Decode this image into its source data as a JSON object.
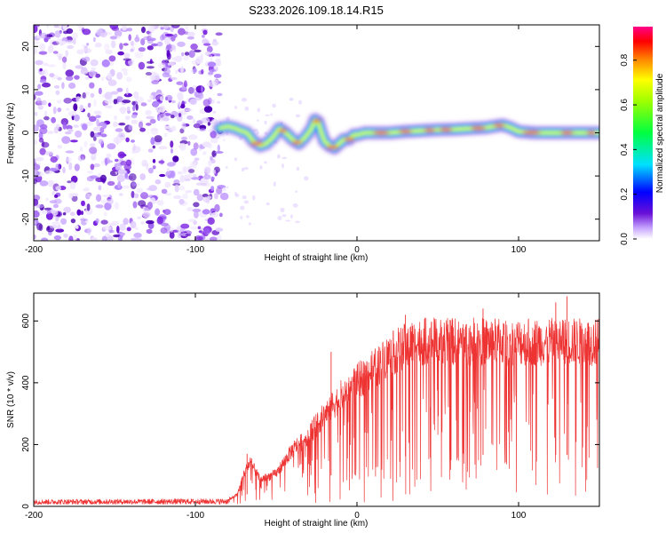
{
  "title": "S233.2026.109.18.14.R15",
  "chart_data": [
    {
      "type": "heatmap",
      "name": "spectrogram",
      "title": "S233.2026.109.18.14.R15",
      "xlabel": "Height of straight line (km)",
      "ylabel": "Frequency (Hz)",
      "xlim": [
        -200,
        150
      ],
      "ylim": [
        -25,
        25
      ],
      "xticks": [
        -200,
        -100,
        0,
        100
      ],
      "yticks": [
        -20,
        -10,
        0,
        10,
        20
      ],
      "noise_region_x": [
        -200,
        -85
      ],
      "ridge": {
        "x": [
          -85,
          -80,
          -75,
          -72,
          -68,
          -64,
          -60,
          -56,
          -52,
          -48,
          -44,
          -40,
          -36,
          -32,
          -28,
          -26,
          -24,
          -22,
          -20,
          -17,
          -14,
          -11,
          -8,
          -5,
          -2,
          0,
          5,
          10,
          20,
          30,
          40,
          50,
          60,
          70,
          80,
          85,
          90,
          95,
          100,
          110,
          120,
          130,
          140,
          150
        ],
        "y": [
          1,
          1.5,
          1,
          0.5,
          0,
          -2,
          -3,
          -2.5,
          -1,
          1,
          0,
          -1.5,
          -2.5,
          -1,
          1,
          3,
          2.5,
          0,
          -2,
          -3,
          -3.5,
          -2.5,
          -1.5,
          -1.5,
          -0.5,
          -0.5,
          0,
          0,
          0,
          0.3,
          0.5,
          0.7,
          0.8,
          1,
          1.2,
          1.5,
          1.8,
          1.2,
          0.3,
          0,
          0,
          0,
          0,
          0
        ]
      },
      "colorbar": {
        "label": "Normalized spectral amplitude",
        "ticks": [
          0.0,
          0.2,
          0.4,
          0.6,
          0.8
        ],
        "range": [
          0,
          0.95
        ],
        "colors": [
          "#ffffff",
          "#b488ff",
          "#5500cc",
          "#0000ff",
          "#00e0ff",
          "#00ff00",
          "#ffff00",
          "#ff8000",
          "#ff0000",
          "#ff0088"
        ]
      }
    },
    {
      "type": "line",
      "name": "snr",
      "xlabel": "Height of straight line (km)",
      "ylabel": "SNR (10 * v/v)",
      "xlim": [
        -200,
        150
      ],
      "ylim": [
        0,
        690
      ],
      "xticks": [
        -200,
        -100,
        0,
        100
      ],
      "yticks": [
        0,
        200,
        400,
        600
      ],
      "color": "#ee3333",
      "envelope": {
        "x": [
          -200,
          -80,
          -74,
          -70,
          -66,
          -60,
          -50,
          -40,
          -30,
          -20,
          -10,
          0,
          10,
          20,
          30,
          40,
          60,
          80,
          100,
          120,
          150
        ],
        "y": [
          18,
          20,
          40,
          110,
          150,
          90,
          110,
          190,
          240,
          310,
          370,
          420,
          460,
          510,
          540,
          555,
          555,
          555,
          555,
          555,
          555
        ]
      },
      "spike_peaks": [
        {
          "x": -68,
          "y": 170
        },
        {
          "x": -16,
          "y": 500
        },
        {
          "x": 30,
          "y": 620
        },
        {
          "x": 78,
          "y": 640
        },
        {
          "x": 123,
          "y": 660
        },
        {
          "x": 130,
          "y": 680
        }
      ]
    }
  ]
}
